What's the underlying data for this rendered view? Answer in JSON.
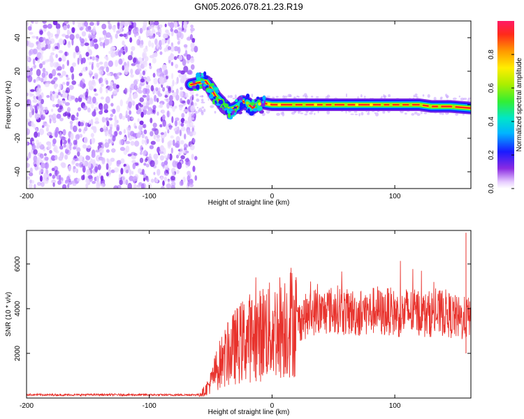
{
  "title": "GN05.2026.078.21.23.R19",
  "chart_data": [
    {
      "type": "heatmap",
      "xlabel": "Height of straight line (km)",
      "ylabel": "Frequency (Hz)",
      "xlim": [
        -200,
        162
      ],
      "ylim": [
        -50,
        50
      ],
      "xticks": [
        "-200",
        "-100",
        "0",
        "100"
      ],
      "xtick_values": [
        -200,
        -100,
        0,
        100
      ],
      "yticks": [
        "-40",
        "-20",
        "0",
        "20",
        "40"
      ],
      "ytick_values": [
        -40,
        -20,
        0,
        20,
        40
      ],
      "colorbar": {
        "label": "Normalized spectral amplitude",
        "range": [
          0,
          1
        ],
        "ticks": [
          "0.0",
          "0.2",
          "0.4",
          "0.6",
          "0.8"
        ],
        "tick_values": [
          0.0,
          0.2,
          0.4,
          0.6,
          0.8
        ]
      },
      "noise_region_x": [
        -200,
        -62
      ],
      "track": [
        {
          "x": -66,
          "y": 12
        },
        {
          "x": -60,
          "y": 13
        },
        {
          "x": -54,
          "y": 14
        },
        {
          "x": -50,
          "y": 10
        },
        {
          "x": -46,
          "y": 5
        },
        {
          "x": -42,
          "y": 2
        },
        {
          "x": -38,
          "y": -2
        },
        {
          "x": -34,
          "y": -3
        },
        {
          "x": -30,
          "y": -2
        },
        {
          "x": -26,
          "y": 0
        },
        {
          "x": -24,
          "y": 2
        },
        {
          "x": -20,
          "y": 1
        },
        {
          "x": -16,
          "y": -2
        },
        {
          "x": -12,
          "y": 0
        },
        {
          "x": -8,
          "y": 1
        },
        {
          "x": 0,
          "y": 0
        },
        {
          "x": 40,
          "y": 0
        },
        {
          "x": 80,
          "y": 0
        },
        {
          "x": 120,
          "y": 0
        },
        {
          "x": 130,
          "y": -1
        },
        {
          "x": 145,
          "y": -1
        },
        {
          "x": 162,
          "y": -2
        }
      ]
    },
    {
      "type": "line",
      "xlabel": "Height of straight line (km)",
      "ylabel": "SNR (10 * v/v)",
      "xlim": [
        -200,
        162
      ],
      "ylim": [
        0,
        7500
      ],
      "xticks": [
        "-200",
        "-100",
        "0",
        "100"
      ],
      "xtick_values": [
        -200,
        -100,
        0,
        100
      ],
      "yticks": [
        "2000",
        "4000",
        "6000"
      ],
      "ytick_values": [
        2000,
        4000,
        6000
      ],
      "color": "#e8322c",
      "series": [
        {
          "x": [
            -200,
            -170,
            -140,
            -110,
            -80,
            -60,
            -55,
            -50,
            -45,
            -40,
            -35,
            -30,
            -25,
            -20,
            -15,
            -10,
            -5,
            0,
            5,
            10,
            15,
            20,
            25,
            30,
            35,
            40,
            45,
            50,
            55,
            60,
            65,
            70,
            75,
            80,
            85,
            90,
            95,
            100,
            105,
            110,
            115,
            120,
            125,
            130,
            135,
            140,
            145,
            150,
            155,
            158,
            162
          ],
          "y": [
            150,
            140,
            150,
            145,
            140,
            150,
            300,
            700,
            1300,
            1700,
            2000,
            2300,
            2500,
            2700,
            2750,
            2800,
            3100,
            2900,
            3200,
            3300,
            3500,
            3350,
            3600,
            3700,
            3900,
            3750,
            3950,
            3900,
            4000,
            3800,
            3850,
            3750,
            3900,
            3800,
            4000,
            3750,
            3900,
            3800,
            3700,
            3900,
            3800,
            3850,
            3700,
            3800,
            3750,
            3850,
            3700,
            3600,
            3500,
            3600,
            3500
          ]
        }
      ]
    }
  ]
}
